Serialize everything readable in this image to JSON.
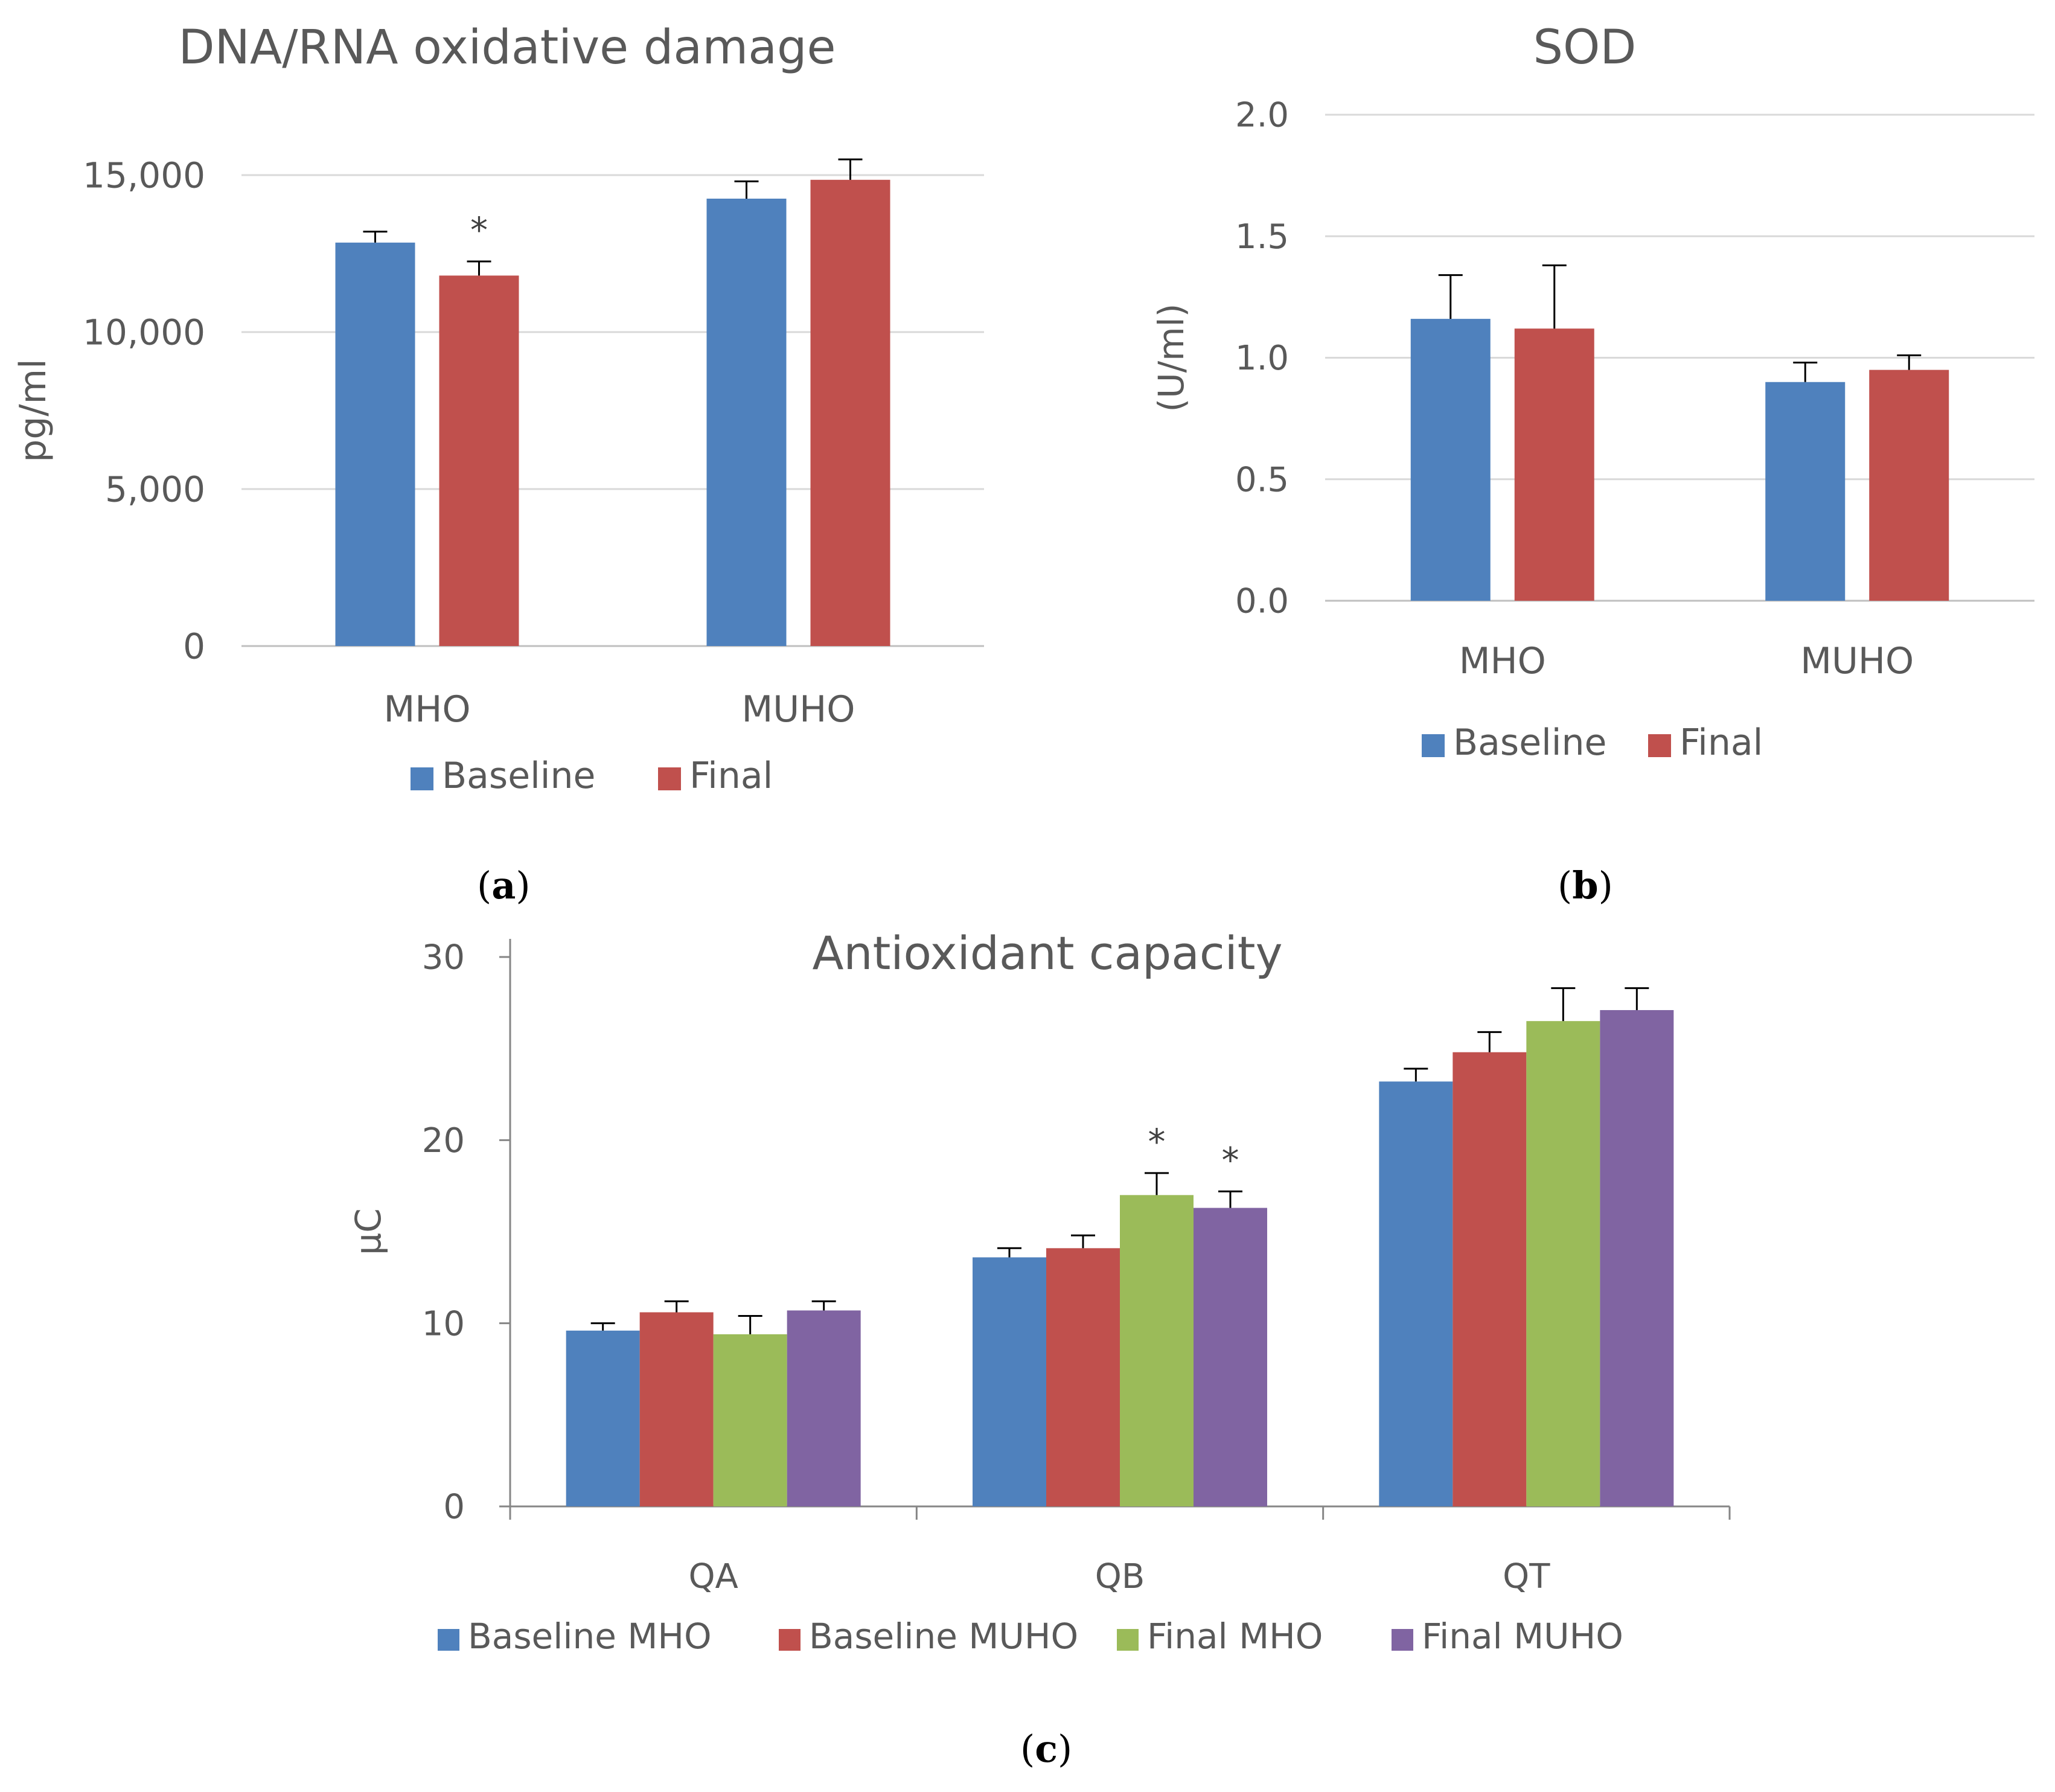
{
  "chart_data": [
    {
      "id": "a",
      "type": "bar",
      "title": "DNA/RNA oxidative damage",
      "ylabel": "pg/ml",
      "xlabel": "",
      "ylim": [
        0,
        15000
      ],
      "yticks": [
        "0",
        "5,000",
        "10,000",
        "15,000"
      ],
      "ytick_values": [
        0,
        5000,
        10000,
        15000
      ],
      "grid": true,
      "categories": [
        "MHO",
        "MUHO"
      ],
      "series": [
        {
          "name": "Baseline",
          "color": "#4F81BD",
          "values": [
            12850,
            14250
          ],
          "errors": [
            350,
            550
          ]
        },
        {
          "name": "Final",
          "color": "#C0504D",
          "values": [
            11800,
            14850
          ],
          "errors": [
            450,
            650
          ]
        }
      ],
      "annotations": [
        {
          "text": "*",
          "series": 1,
          "category": 0
        }
      ],
      "legend_position": "bottom",
      "caption": "a"
    },
    {
      "id": "b",
      "type": "bar",
      "title": "SOD",
      "ylabel": "(U/ml)",
      "xlabel": "",
      "ylim": [
        0,
        2.0
      ],
      "yticks": [
        "0.0",
        "0.5",
        "1.0",
        "1.5",
        "2.0"
      ],
      "ytick_values": [
        0,
        0.5,
        1.0,
        1.5,
        2.0
      ],
      "grid": true,
      "categories": [
        "MHO",
        "MUHO"
      ],
      "series": [
        {
          "name": "Baseline",
          "color": "#4F81BD",
          "values": [
            1.16,
            0.9
          ],
          "errors": [
            0.18,
            0.08
          ]
        },
        {
          "name": "Final",
          "color": "#C0504D",
          "values": [
            1.12,
            0.95
          ],
          "errors": [
            0.26,
            0.06
          ]
        }
      ],
      "annotations": [],
      "legend_position": "bottom",
      "caption": "b"
    },
    {
      "id": "c",
      "type": "bar",
      "title": "Antioxidant capacity",
      "ylabel": "μC",
      "xlabel": "",
      "ylim": [
        0,
        30
      ],
      "yticks": [
        "0",
        "10",
        "20",
        "30"
      ],
      "ytick_values": [
        0,
        10,
        20,
        30
      ],
      "grid": false,
      "categories": [
        "QA",
        "QB",
        "QT"
      ],
      "series": [
        {
          "name": "Baseline MHO",
          "color": "#4F81BD",
          "values": [
            9.6,
            13.6,
            23.2
          ],
          "errors": [
            0.4,
            0.5,
            0.7
          ]
        },
        {
          "name": "Baseline MUHO",
          "color": "#C0504D",
          "values": [
            10.6,
            14.1,
            24.8
          ],
          "errors": [
            0.6,
            0.7,
            1.1
          ]
        },
        {
          "name": "Final MHO",
          "color": "#9BBB59",
          "values": [
            9.4,
            17.0,
            26.5
          ],
          "errors": [
            1.0,
            1.2,
            1.8
          ]
        },
        {
          "name": "Final MUHO",
          "color": "#8064A2",
          "values": [
            10.7,
            16.3,
            27.1
          ],
          "errors": [
            0.5,
            0.9,
            1.2
          ]
        }
      ],
      "annotations": [
        {
          "text": "*",
          "series": 2,
          "category": 1
        },
        {
          "text": "*",
          "series": 3,
          "category": 1
        }
      ],
      "legend_position": "bottom",
      "caption": "c"
    }
  ]
}
